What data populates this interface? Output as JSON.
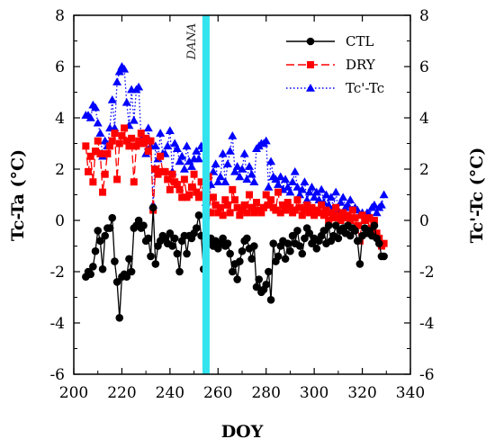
{
  "chart_data": {
    "type": "line",
    "xlabel": "DOY",
    "ylabel": "Tc-Ta (°C)",
    "ylabel_right": "Tc'-Tc (°C)",
    "xlim": [
      200,
      340
    ],
    "ylim": [
      -6,
      8
    ],
    "xticks": [
      "200",
      "220",
      "240",
      "260",
      "280",
      "300",
      "320",
      "340"
    ],
    "yticks": [
      "-6",
      "-4",
      "-2",
      "0",
      "2",
      "4",
      "6",
      "8"
    ],
    "yticks_right": [
      "-6",
      "-4",
      "-2",
      "0",
      "2",
      "4",
      "6",
      "8"
    ],
    "legend_position": "top-right",
    "annotation": {
      "label": "DANA",
      "x": 255,
      "color": "#33e4ee"
    },
    "colors": {
      "CTL": "#000000",
      "DRY": "#ff0000",
      "TcTc": "#0000ff"
    },
    "series": [
      {
        "name": "CTL",
        "marker": "circle",
        "line": "solid",
        "x": [
          205,
          206,
          207,
          208,
          209,
          210,
          211,
          212,
          213,
          214,
          215,
          216,
          217,
          218,
          219,
          220,
          221,
          222,
          223,
          224,
          225,
          226,
          227,
          228,
          229,
          230,
          231,
          232,
          233,
          234,
          235,
          236,
          237,
          238,
          239,
          240,
          241,
          242,
          243,
          244,
          245,
          246,
          247,
          248,
          249,
          250,
          251,
          252,
          253,
          254,
          255,
          256,
          257,
          258,
          259,
          260,
          261,
          262,
          263,
          264,
          265,
          266,
          267,
          268,
          269,
          270,
          271,
          272,
          273,
          274,
          275,
          276,
          277,
          278,
          279,
          280,
          281,
          282,
          283,
          284,
          285,
          286,
          287,
          288,
          289,
          290,
          291,
          292,
          293,
          294,
          295,
          296,
          297,
          298,
          299,
          300,
          301,
          302,
          303,
          304,
          305,
          306,
          307,
          308,
          309,
          310,
          311,
          312,
          313,
          314,
          315,
          316,
          317,
          318,
          319,
          320,
          321,
          322,
          323,
          324,
          325,
          326,
          327,
          328,
          329
        ],
        "y": [
          -2.2,
          -2.0,
          -2.1,
          -1.8,
          -1.2,
          -0.4,
          -0.8,
          -1.9,
          -0.6,
          -0.3,
          -0.3,
          0.1,
          -1.6,
          -2.4,
          -3.8,
          -2.2,
          -2.1,
          -2.2,
          -1.5,
          -2.0,
          -0.3,
          -0.2,
          0.0,
          -0.3,
          -0.2,
          -0.8,
          -0.7,
          -1.4,
          0.5,
          -1.7,
          -1.0,
          -0.8,
          -0.6,
          -0.7,
          -0.9,
          -0.5,
          -1.0,
          -0.7,
          -1.3,
          -2.0,
          -0.8,
          -0.6,
          -1.3,
          -0.6,
          -0.7,
          -0.5,
          -0.3,
          0.2,
          -0.6,
          -1.9,
          0.1,
          -0.9,
          -0.7,
          -1.0,
          -0.8,
          -1.1,
          -0.9,
          -0.7,
          -1.0,
          -0.9,
          -1.3,
          -2.0,
          -1.7,
          -2.3,
          -1.6,
          -1.2,
          -0.8,
          -0.7,
          -1.1,
          -1.5,
          -1.0,
          -2.6,
          -2.3,
          -2.8,
          -2.7,
          -2.5,
          -2.0,
          -3.1,
          -0.9,
          -1.6,
          -1.4,
          -1.0,
          -0.8,
          -1.5,
          -0.9,
          -1.2,
          -0.6,
          -0.9,
          -0.4,
          -1.0,
          -1.3,
          -0.7,
          -0.3,
          -0.5,
          -0.9,
          -0.7,
          -1.1,
          -0.8,
          -0.6,
          -0.4,
          -0.9,
          -0.2,
          -0.8,
          -0.6,
          -0.2,
          -0.7,
          -0.4,
          -0.3,
          -0.5,
          -0.2,
          -0.6,
          -0.3,
          -0.4,
          -0.8,
          -1.7,
          -0.6,
          -0.3,
          -0.5,
          -0.4,
          -0.6,
          -0.2,
          -0.7,
          -0.9,
          -1.4,
          -1.4
        ]
      },
      {
        "name": "DRY",
        "marker": "square",
        "line": "dashed",
        "x": [
          205,
          206,
          207,
          208,
          209,
          210,
          211,
          212,
          213,
          214,
          215,
          216,
          217,
          218,
          219,
          220,
          221,
          222,
          223,
          224,
          225,
          226,
          227,
          228,
          229,
          230,
          231,
          232,
          233,
          234,
          235,
          236,
          237,
          238,
          239,
          240,
          241,
          242,
          243,
          244,
          245,
          246,
          247,
          248,
          249,
          250,
          251,
          252,
          253,
          254,
          255,
          256,
          257,
          258,
          259,
          260,
          261,
          262,
          263,
          264,
          265,
          266,
          267,
          268,
          269,
          270,
          271,
          272,
          273,
          274,
          275,
          276,
          277,
          278,
          279,
          280,
          281,
          282,
          283,
          284,
          285,
          286,
          287,
          288,
          289,
          290,
          291,
          292,
          293,
          294,
          295,
          296,
          297,
          298,
          299,
          300,
          301,
          302,
          303,
          304,
          305,
          306,
          307,
          308,
          309,
          310,
          311,
          312,
          313,
          314,
          315,
          316,
          317,
          318,
          319,
          320,
          321,
          322,
          323,
          324,
          325,
          326,
          327,
          328,
          329
        ],
        "y": [
          2.9,
          1.9,
          2.5,
          1.5,
          2.7,
          3.1,
          2.6,
          1.1,
          1.8,
          2.6,
          2.9,
          3.1,
          3.4,
          1.6,
          3.0,
          3.3,
          3.6,
          3.1,
          2.9,
          3.2,
          1.5,
          2.9,
          3.1,
          3.4,
          3.0,
          3.2,
          2.7,
          3.1,
          0.4,
          2.0,
          1.8,
          2.5,
          1.9,
          1.9,
          1.6,
          1.2,
          1.8,
          1.5,
          1.4,
          1.2,
          0.9,
          1.6,
          0.9,
          1.0,
          1.3,
          1.8,
          1.1,
          0.9,
          1.5,
          1.0,
          1.2,
          1.7,
          0.3,
          0.9,
          0.6,
          0.3,
          0.5,
          0.2,
          0.8,
          0.6,
          0.3,
          1.2,
          0.8,
          0.5,
          0.2,
          0.4,
          0.6,
          0.3,
          1.0,
          0.5,
          0.3,
          0.7,
          0.4,
          0.3,
          0.5,
          1.0,
          0.6,
          0.8,
          0.5,
          0.4,
          1.1,
          0.3,
          0.6,
          0.4,
          0.7,
          0.5,
          0.3,
          0.4,
          0.8,
          0.5,
          0.2,
          0.4,
          0.6,
          0.3,
          0.5,
          0.2,
          0.4,
          0.3,
          0.6,
          0.2,
          0.4,
          0.0,
          0.3,
          0.1,
          0.5,
          0.2,
          0.0,
          0.3,
          0.1,
          0.2,
          0.0,
          0.4,
          0.1,
          -0.2,
          -0.8,
          0.2,
          0.0,
          -0.5,
          0.1,
          -0.3,
          0.0,
          -0.5,
          -0.7,
          -1.0,
          -0.9
        ]
      },
      {
        "name": "Tc'-Tc",
        "marker": "triangle",
        "line": "dotted",
        "x": [
          205,
          206,
          207,
          208,
          209,
          210,
          211,
          212,
          213,
          214,
          215,
          216,
          217,
          218,
          219,
          220,
          221,
          222,
          223,
          224,
          225,
          226,
          227,
          228,
          229,
          230,
          231,
          232,
          233,
          234,
          235,
          236,
          237,
          238,
          239,
          240,
          241,
          242,
          243,
          244,
          245,
          246,
          247,
          248,
          249,
          250,
          251,
          252,
          253,
          254,
          255,
          256,
          257,
          258,
          259,
          260,
          261,
          262,
          263,
          264,
          265,
          266,
          267,
          268,
          269,
          270,
          271,
          272,
          273,
          274,
          275,
          276,
          277,
          278,
          279,
          280,
          281,
          282,
          283,
          284,
          285,
          286,
          287,
          288,
          289,
          290,
          291,
          292,
          293,
          294,
          295,
          296,
          297,
          298,
          299,
          300,
          301,
          302,
          303,
          304,
          305,
          306,
          307,
          308,
          309,
          310,
          311,
          312,
          313,
          314,
          315,
          316,
          317,
          318,
          319,
          320,
          321,
          322,
          323,
          324,
          325,
          326,
          327,
          328,
          329
        ],
        "y": [
          4.1,
          4.1,
          4.0,
          4.5,
          4.4,
          3.8,
          3.4,
          2.5,
          3.1,
          2.9,
          3.6,
          4.7,
          3.6,
          5.4,
          5.8,
          6.0,
          5.9,
          4.6,
          3.7,
          5.1,
          3.9,
          5.1,
          5.2,
          3.2,
          3.0,
          2.6,
          3.6,
          2.9,
          0.6,
          2.9,
          2.4,
          3.4,
          2.6,
          2.6,
          2.9,
          3.5,
          1.9,
          3.0,
          2.8,
          2.3,
          2.5,
          2.0,
          2.9,
          2.3,
          2.1,
          2.4,
          2.7,
          2.4,
          2.9,
          2.8,
          0.7,
          0.3,
          1.4,
          1.9,
          2.2,
          1.5,
          1.7,
          2.6,
          1.5,
          2.2,
          2.7,
          3.3,
          1.9,
          2.1,
          1.7,
          2.0,
          2.6,
          1.6,
          2.1,
          1.8,
          1.5,
          2.8,
          2.9,
          3.0,
          3.0,
          3.1,
          1.3,
          2.3,
          1.7,
          1.6,
          1.4,
          1.7,
          1.2,
          1.6,
          1.3,
          1.1,
          1.5,
          1.9,
          1.3,
          1.0,
          1.2,
          1.5,
          0.8,
          1.1,
          1.3,
          0.9,
          1.1,
          0.8,
          1.2,
          0.7,
          1.0,
          0.6,
          0.9,
          0.5,
          1.1,
          0.4,
          0.7,
          0.9,
          0.5,
          0.6,
          0.8,
          0.4,
          0.5,
          0.4,
          0.2,
          0.3,
          0.0,
          0.3,
          0.2,
          0.5,
          0.6,
          0.3,
          0.5,
          0.6,
          1.0
        ]
      }
    ]
  }
}
